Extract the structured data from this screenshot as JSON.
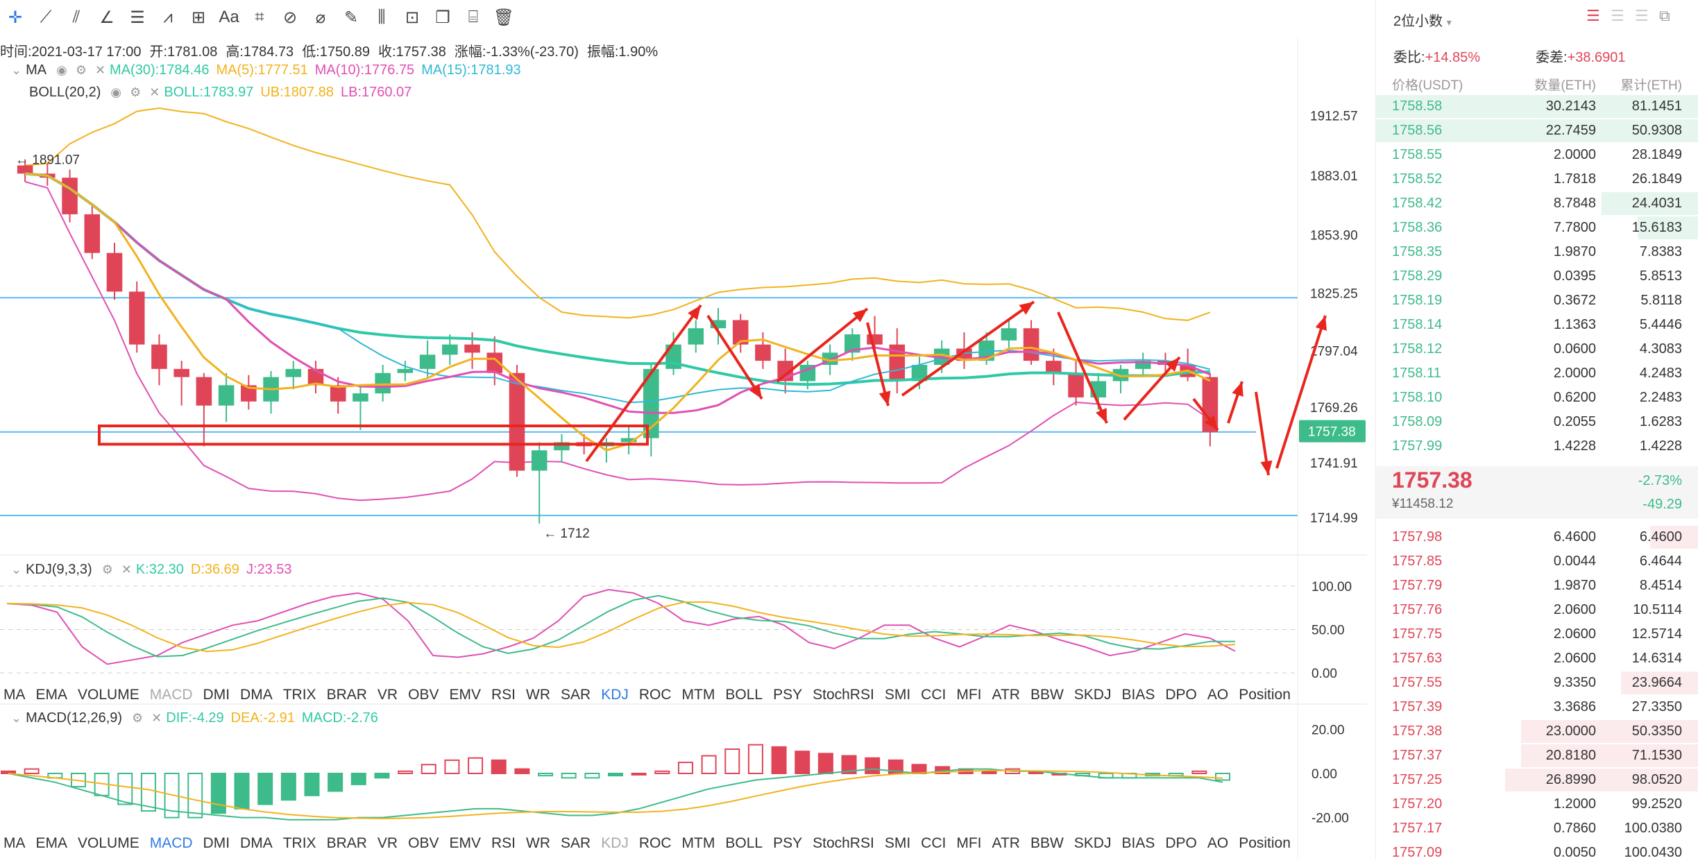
{
  "toolbar": {
    "tools": [
      "crosshair-icon",
      "trend-line-icon",
      "parallel-channel-icon",
      "angle-line-icon",
      "horizontal-lines-icon",
      "wave-icon",
      "rectangle-icon",
      "text-icon",
      "pattern-icon",
      "brush-icon",
      "ruler-icon",
      "pencil-icon",
      "bars-icon",
      "lock-icon",
      "copy-icon",
      "measure-icon",
      "trash-icon"
    ],
    "text_tool_label": "Aa"
  },
  "ohlc": {
    "time": "时间:2021-03-17 17:00",
    "open": "开:1781.08",
    "high": "高:1784.73",
    "low": "低:1750.89",
    "close": "收:1757.38",
    "change": "涨幅:-1.33%(-23.70)",
    "amplitude": "振幅:1.90%"
  },
  "ma_row": {
    "label": "MA",
    "ma30": "MA(30):1784.46",
    "ma5": "MA(5):1777.51",
    "ma10": "MA(10):1776.75",
    "ma15": "MA(15):1781.93"
  },
  "boll_row": {
    "label": "BOLL(20,2)",
    "boll": "BOLL:1783.97",
    "ub": "UB:1807.88",
    "lb": "LB:1760.07"
  },
  "kdj_row": {
    "label": "KDJ(9,3,3)",
    "k": "K:32.30",
    "d": "D:36.69",
    "j": "J:23.53"
  },
  "macd_row": {
    "label": "MACD(12,26,9)",
    "dif": "DIF:-4.29",
    "dea": "DEA:-2.91",
    "macd": "MACD:-2.76"
  },
  "price_axis": [
    "1912.57",
    "1883.01",
    "1853.90",
    "1825.25",
    "1797.04",
    "1769.26",
    "1741.91",
    "1714.99"
  ],
  "current_price_tag": "1757.38",
  "high_marker": "1891.07",
  "low_marker": "1712",
  "kdj_axis": [
    "100.00",
    "50.00",
    "0.00"
  ],
  "macd_axis": [
    "20.00",
    "0.00",
    "-20.00"
  ],
  "indicator_tabs_1": [
    "MA",
    "EMA",
    "VOLUME",
    "MACD",
    "DMI",
    "DMA",
    "TRIX",
    "BRAR",
    "VR",
    "OBV",
    "EMV",
    "RSI",
    "WR",
    "SAR",
    "KDJ",
    "ROC",
    "MTM",
    "BOLL",
    "PSY",
    "StochRSI",
    "SMI",
    "CCI",
    "MFI",
    "ATR",
    "BBW",
    "SKDJ",
    "BIAS",
    "DPO",
    "AO",
    "Position"
  ],
  "indicator_tabs_2": [
    "MA",
    "EMA",
    "VOLUME",
    "MACD",
    "DMI",
    "DMA",
    "TRIX",
    "BRAR",
    "VR",
    "OBV",
    "EMV",
    "RSI",
    "WR",
    "SAR",
    "KDJ",
    "ROC",
    "MTM",
    "BOLL",
    "PSY",
    "StochRSI",
    "SMI",
    "CCI",
    "MFI",
    "ATR",
    "BBW",
    "SKDJ",
    "BIAS",
    "DPO",
    "AO",
    "Position"
  ],
  "colors": {
    "up": "#3dbb8a",
    "down": "#e04557",
    "ma5": "#f2b21e",
    "ma10": "#e04fb3",
    "ma15": "#30b8d6",
    "ma30": "#2fc9a5",
    "boll_ub": "#f2b21e",
    "boll_lb": "#e04fb3",
    "hline": "#5bb8f0",
    "annotation": "#e8261e"
  },
  "order_book": {
    "decimals": "2位小数",
    "ratio_label": "委比:",
    "ratio_value": "+14.85%",
    "diff_label": "委差:",
    "diff_value": "+38.6901",
    "headers": [
      "价格(USDT)",
      "数量(ETH)",
      "累计(ETH)"
    ],
    "asks": [
      {
        "price": "1758.58",
        "qty": "30.2143",
        "total": "81.1451",
        "depth": 1.0
      },
      {
        "price": "1758.56",
        "qty": "22.7459",
        "total": "50.9308",
        "depth": 1.0
      },
      {
        "price": "1758.55",
        "qty": "2.0000",
        "total": "28.1849",
        "depth": 0
      },
      {
        "price": "1758.52",
        "qty": "1.7818",
        "total": "26.1849",
        "depth": 0
      },
      {
        "price": "1758.42",
        "qty": "8.7848",
        "total": "24.4031",
        "depth": 0.3
      },
      {
        "price": "1758.36",
        "qty": "7.7800",
        "total": "15.6183",
        "depth": 0.19
      },
      {
        "price": "1758.35",
        "qty": "1.9870",
        "total": "7.8383",
        "depth": 0
      },
      {
        "price": "1758.29",
        "qty": "0.0395",
        "total": "5.8513",
        "depth": 0
      },
      {
        "price": "1758.19",
        "qty": "0.3672",
        "total": "5.8118",
        "depth": 0
      },
      {
        "price": "1758.14",
        "qty": "1.1363",
        "total": "5.4446",
        "depth": 0
      },
      {
        "price": "1758.12",
        "qty": "0.0600",
        "total": "4.3083",
        "depth": 0
      },
      {
        "price": "1758.11",
        "qty": "2.0000",
        "total": "4.2483",
        "depth": 0
      },
      {
        "price": "1758.10",
        "qty": "0.6200",
        "total": "2.2483",
        "depth": 0
      },
      {
        "price": "1758.09",
        "qty": "0.2055",
        "total": "1.6283",
        "depth": 0
      },
      {
        "price": "1757.99",
        "qty": "1.4228",
        "total": "1.4228",
        "depth": 0
      }
    ],
    "last_price": "1757.38",
    "last_change_pct": "-2.73%",
    "last_cny": "¥11458.12",
    "last_change": "-49.29",
    "bids": [
      {
        "price": "1757.98",
        "qty": "6.4600",
        "total": "6.4600",
        "depth": 0.15
      },
      {
        "price": "1757.85",
        "qty": "0.0044",
        "total": "6.4644",
        "depth": 0
      },
      {
        "price": "1757.79",
        "qty": "1.9870",
        "total": "8.4514",
        "depth": 0
      },
      {
        "price": "1757.76",
        "qty": "2.0600",
        "total": "10.5114",
        "depth": 0
      },
      {
        "price": "1757.75",
        "qty": "2.0600",
        "total": "12.5714",
        "depth": 0
      },
      {
        "price": "1757.63",
        "qty": "2.0600",
        "total": "14.6314",
        "depth": 0
      },
      {
        "price": "1757.55",
        "qty": "9.3350",
        "total": "23.9664",
        "depth": 0.24
      },
      {
        "price": "1757.39",
        "qty": "3.3686",
        "total": "27.3350",
        "depth": 0
      },
      {
        "price": "1757.38",
        "qty": "23.0000",
        "total": "50.3350",
        "depth": 0.55
      },
      {
        "price": "1757.37",
        "qty": "20.8180",
        "total": "71.1530",
        "depth": 0.55
      },
      {
        "price": "1757.25",
        "qty": "26.8990",
        "total": "98.0520",
        "depth": 0.6
      },
      {
        "price": "1757.20",
        "qty": "1.2000",
        "total": "99.2520",
        "depth": 0
      },
      {
        "price": "1757.17",
        "qty": "0.7860",
        "total": "100.0380",
        "depth": 0
      },
      {
        "price": "1757.09",
        "qty": "0.0050",
        "total": "100.0430",
        "depth": 0
      }
    ]
  },
  "chart_data": {
    "type": "candlestick",
    "y_range": [
      1700,
      1925
    ],
    "candles": [
      [
        1888,
        1891,
        1880,
        1884
      ],
      [
        1884,
        1889,
        1878,
        1882
      ],
      [
        1882,
        1886,
        1860,
        1864
      ],
      [
        1864,
        1868,
        1842,
        1845
      ],
      [
        1845,
        1850,
        1822,
        1826
      ],
      [
        1826,
        1831,
        1796,
        1800
      ],
      [
        1800,
        1805,
        1780,
        1788
      ],
      [
        1788,
        1792,
        1770,
        1784
      ],
      [
        1784,
        1786,
        1750,
        1770
      ],
      [
        1770,
        1786,
        1762,
        1780
      ],
      [
        1780,
        1785,
        1768,
        1772
      ],
      [
        1772,
        1787,
        1766,
        1784
      ],
      [
        1784,
        1792,
        1778,
        1788
      ],
      [
        1788,
        1792,
        1776,
        1780
      ],
      [
        1780,
        1784,
        1766,
        1772
      ],
      [
        1772,
        1780,
        1758,
        1776
      ],
      [
        1776,
        1790,
        1772,
        1786
      ],
      [
        1786,
        1792,
        1782,
        1788
      ],
      [
        1788,
        1802,
        1784,
        1795
      ],
      [
        1795,
        1805,
        1790,
        1800
      ],
      [
        1800,
        1806,
        1788,
        1796
      ],
      [
        1796,
        1804,
        1780,
        1786
      ],
      [
        1786,
        1790,
        1735,
        1738
      ],
      [
        1738,
        1752,
        1712,
        1748
      ],
      [
        1748,
        1756,
        1742,
        1752
      ],
      [
        1752,
        1756,
        1746,
        1750
      ],
      [
        1750,
        1754,
        1742,
        1752
      ],
      [
        1752,
        1760,
        1746,
        1754
      ],
      [
        1754,
        1790,
        1745,
        1788
      ],
      [
        1788,
        1806,
        1785,
        1800
      ],
      [
        1800,
        1812,
        1796,
        1808
      ],
      [
        1808,
        1818,
        1800,
        1812
      ],
      [
        1812,
        1815,
        1796,
        1800
      ],
      [
        1800,
        1806,
        1788,
        1792
      ],
      [
        1792,
        1798,
        1776,
        1782
      ],
      [
        1782,
        1792,
        1778,
        1790
      ],
      [
        1790,
        1800,
        1785,
        1796
      ],
      [
        1796,
        1808,
        1792,
        1805
      ],
      [
        1805,
        1814,
        1798,
        1800
      ],
      [
        1800,
        1808,
        1776,
        1782
      ],
      [
        1782,
        1794,
        1778,
        1790
      ],
      [
        1790,
        1802,
        1786,
        1798
      ],
      [
        1798,
        1806,
        1788,
        1792
      ],
      [
        1792,
        1806,
        1790,
        1802
      ],
      [
        1802,
        1812,
        1798,
        1808
      ],
      [
        1808,
        1812,
        1790,
        1792
      ],
      [
        1792,
        1798,
        1780,
        1786
      ],
      [
        1786,
        1792,
        1770,
        1774
      ],
      [
        1774,
        1786,
        1768,
        1782
      ],
      [
        1782,
        1790,
        1776,
        1788
      ],
      [
        1788,
        1796,
        1784,
        1792
      ],
      [
        1792,
        1796,
        1786,
        1790
      ],
      [
        1790,
        1798,
        1782,
        1784
      ],
      [
        1784,
        1786,
        1750,
        1757
      ]
    ],
    "annotation": "red rectangle support zone near 1757 and arrows sketching a zigzag path"
  }
}
